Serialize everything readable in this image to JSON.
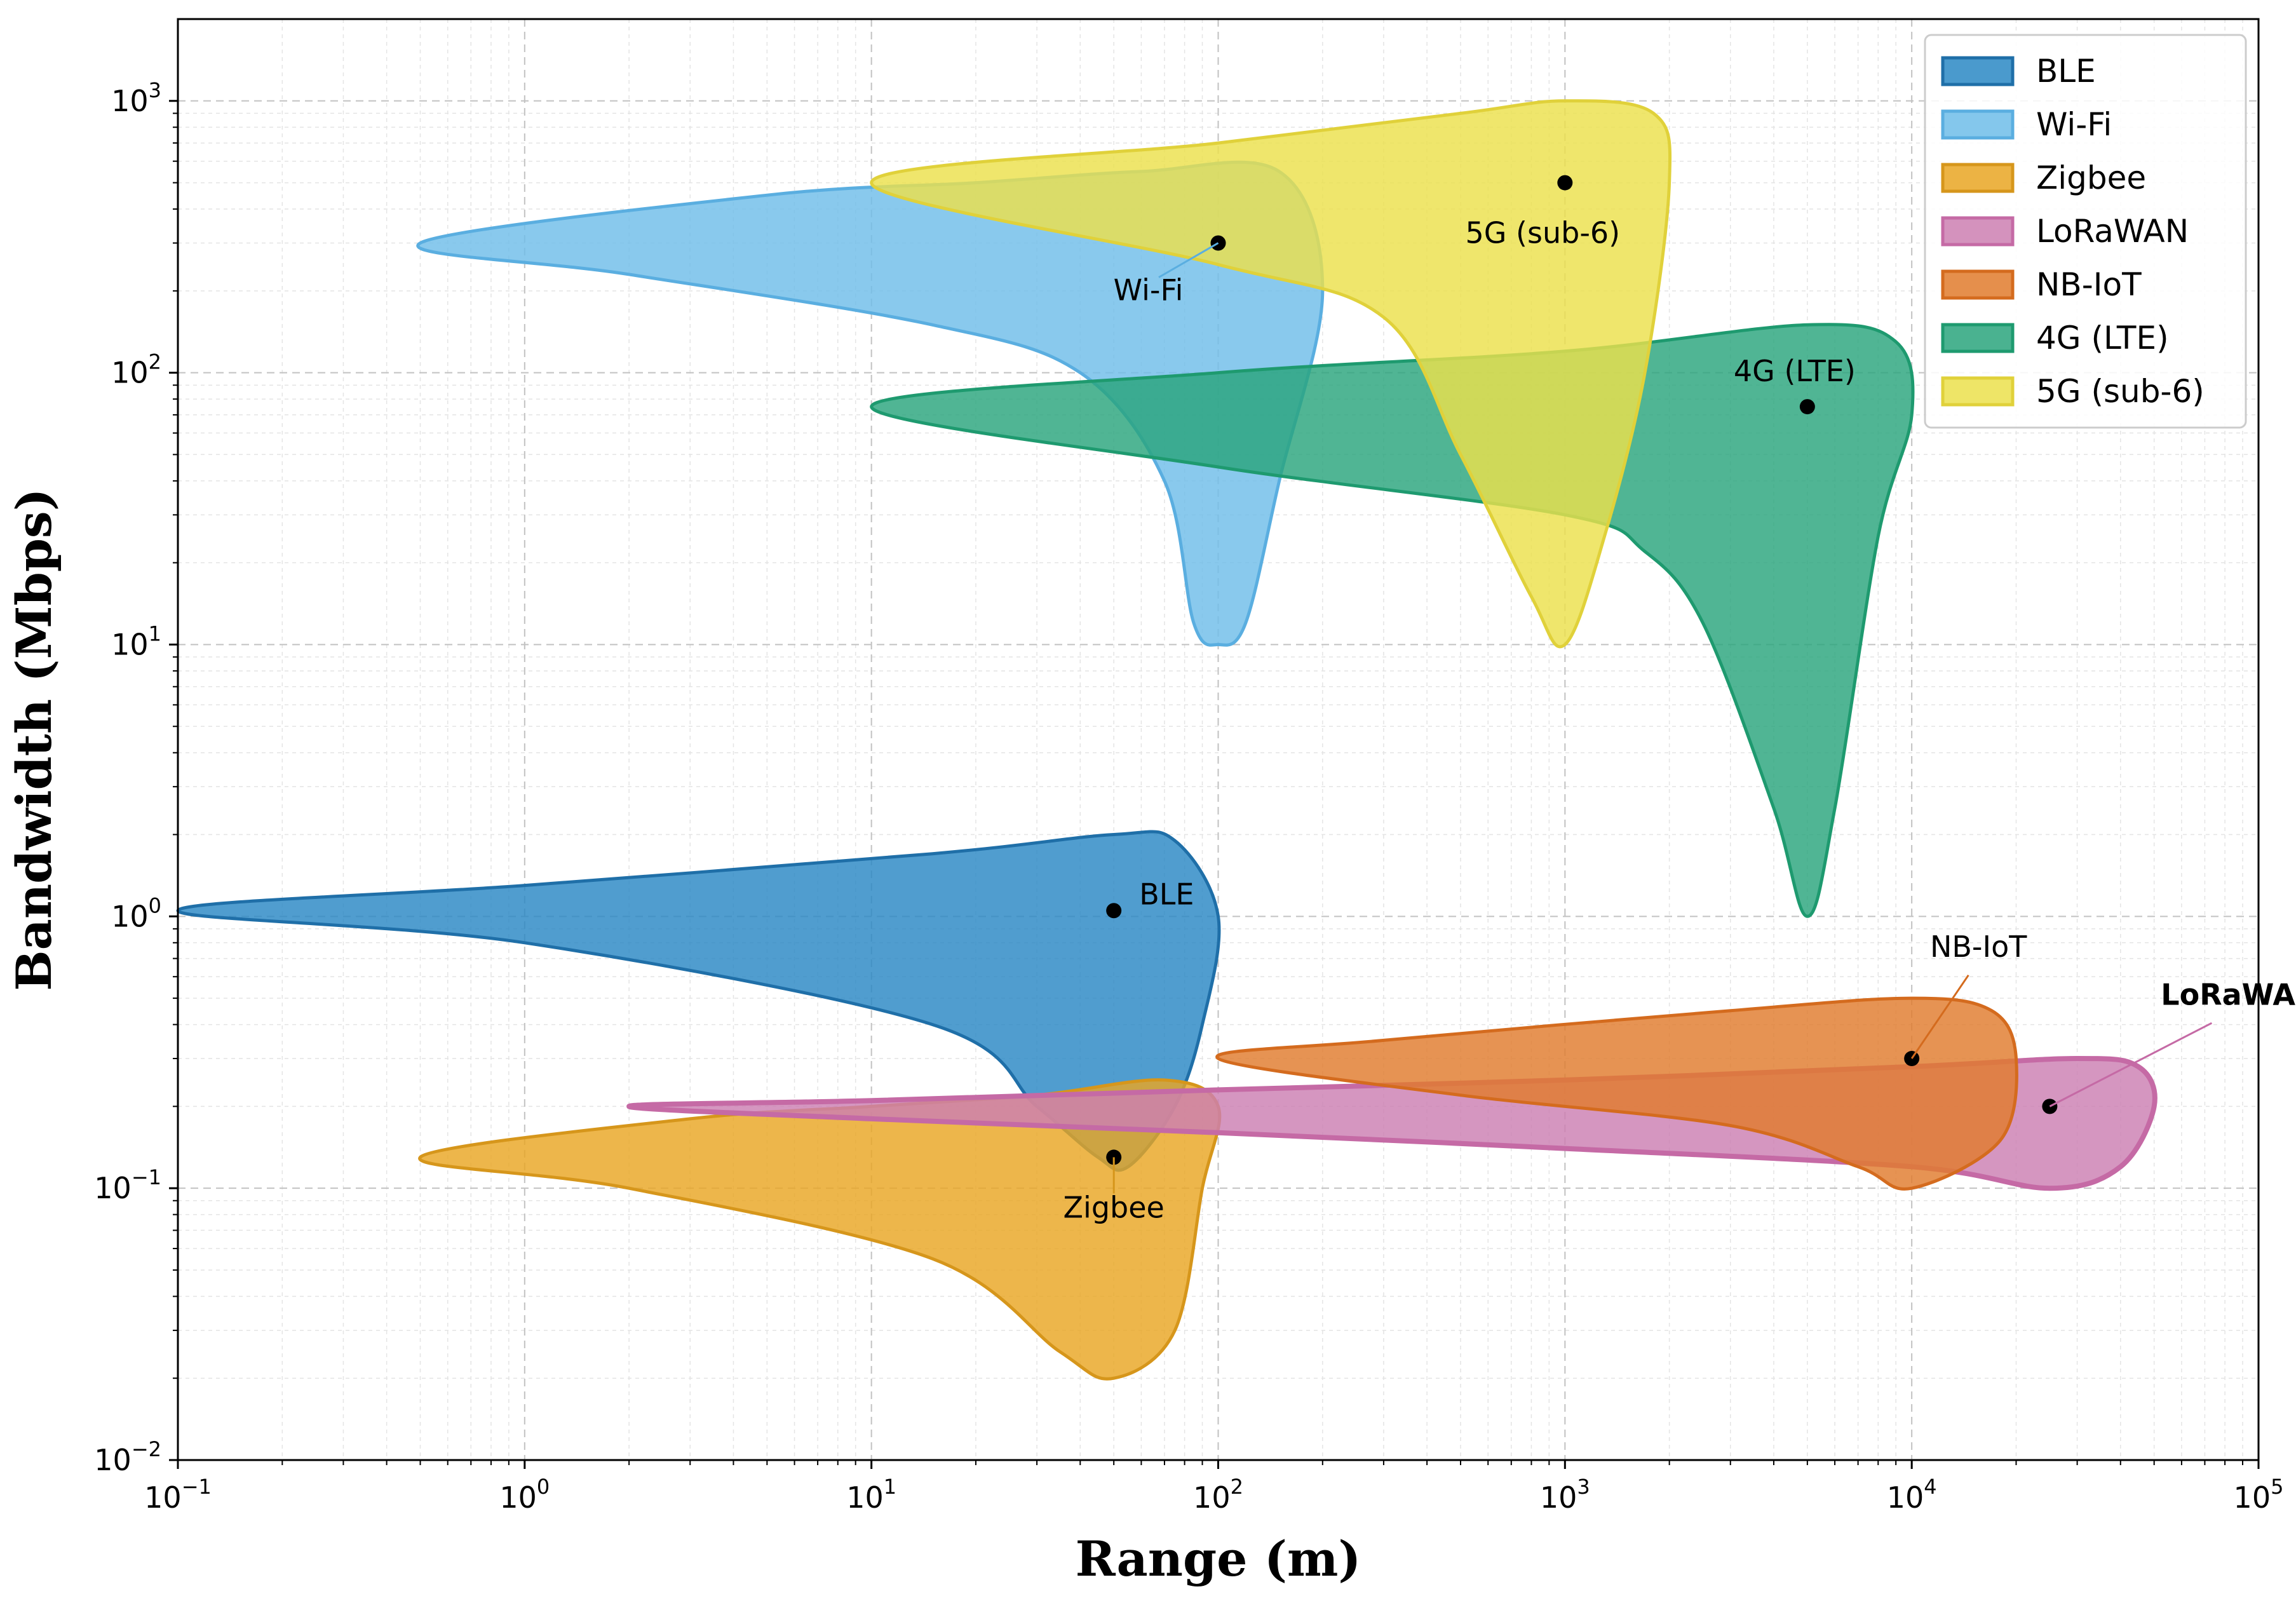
{
  "chart_data": {
    "type": "area",
    "title": "",
    "xlabel": "Range (m)",
    "ylabel": "Bandwidth (Mbps)",
    "x_scale": "log",
    "y_scale": "log",
    "xlim": [
      0.1,
      100000
    ],
    "ylim": [
      0.01,
      2000
    ],
    "grid": true,
    "legend_position": "top-right",
    "x_ticks": [
      {
        "value": 0.1,
        "base": "10",
        "exp": "−1"
      },
      {
        "value": 1,
        "base": "10",
        "exp": "0"
      },
      {
        "value": 10,
        "base": "10",
        "exp": "1"
      },
      {
        "value": 100,
        "base": "10",
        "exp": "2"
      },
      {
        "value": 1000,
        "base": "10",
        "exp": "3"
      },
      {
        "value": 10000,
        "base": "10",
        "exp": "4"
      },
      {
        "value": 100000,
        "base": "10",
        "exp": "5"
      }
    ],
    "y_ticks": [
      {
        "value": 0.01,
        "base": "10",
        "exp": "−2"
      },
      {
        "value": 0.1,
        "base": "10",
        "exp": "−1"
      },
      {
        "value": 1,
        "base": "10",
        "exp": "0"
      },
      {
        "value": 10,
        "base": "10",
        "exp": "1"
      },
      {
        "value": 100,
        "base": "10",
        "exp": "2"
      },
      {
        "value": 1000,
        "base": "10",
        "exp": "3"
      }
    ],
    "series": [
      {
        "name": "BLE",
        "fill": "#2a88c4",
        "stroke": "#1f6fa8",
        "point": [
          50,
          1.05
        ],
        "label": "BLE",
        "label_bold": false,
        "region": [
          [
            0.1,
            1.05
          ],
          [
            1,
            1.3
          ],
          [
            15,
            1.7
          ],
          [
            50,
            2.0
          ],
          [
            75,
            1.9
          ],
          [
            100,
            1.0
          ],
          [
            90,
            0.4
          ],
          [
            75,
            0.2
          ],
          [
            55,
            0.12
          ],
          [
            45,
            0.13
          ],
          [
            30,
            0.2
          ],
          [
            15,
            0.4
          ],
          [
            1,
            0.8
          ],
          [
            0.1,
            1.05
          ]
        ]
      },
      {
        "name": "Wi-Fi",
        "fill": "#6fbde9",
        "stroke": "#5aaee0",
        "point": [
          100,
          300
        ],
        "label": "Wi-Fi",
        "label_bold": false,
        "region": [
          [
            0.5,
            300
          ],
          [
            5,
            450
          ],
          [
            20,
            500
          ],
          [
            60,
            550
          ],
          [
            150,
            550
          ],
          [
            200,
            200
          ],
          [
            150,
            40
          ],
          [
            120,
            12
          ],
          [
            100,
            10
          ],
          [
            85,
            12
          ],
          [
            70,
            40
          ],
          [
            40,
            100
          ],
          [
            15,
            150
          ],
          [
            2,
            230
          ],
          [
            0.5,
            300
          ]
        ]
      },
      {
        "name": "Zigbee",
        "fill": "#e9a623",
        "stroke": "#d6961b",
        "point": [
          50,
          0.13
        ],
        "label": "Zigbee",
        "label_bold": false,
        "region": [
          [
            0.5,
            0.13
          ],
          [
            3,
            0.18
          ],
          [
            10,
            0.2
          ],
          [
            30,
            0.22
          ],
          [
            70,
            0.25
          ],
          [
            100,
            0.2
          ],
          [
            90,
            0.1
          ],
          [
            75,
            0.03
          ],
          [
            50,
            0.02
          ],
          [
            35,
            0.025
          ],
          [
            15,
            0.055
          ],
          [
            2,
            0.1
          ],
          [
            0.5,
            0.13
          ]
        ]
      },
      {
        "name": "LoRaWAN",
        "fill": "#cc7fb2",
        "stroke": "#c56aa5",
        "point": [
          25000,
          0.2
        ],
        "label": "LoRaWAN",
        "label_bold": true,
        "region": [
          [
            2,
            0.2
          ],
          [
            10,
            0.21
          ],
          [
            100,
            0.23
          ],
          [
            1000,
            0.25
          ],
          [
            10000,
            0.28
          ],
          [
            30000,
            0.3
          ],
          [
            45000,
            0.28
          ],
          [
            50000,
            0.2
          ],
          [
            40000,
            0.12
          ],
          [
            25000,
            0.1
          ],
          [
            10000,
            0.12
          ],
          [
            1000,
            0.14
          ],
          [
            100,
            0.16
          ],
          [
            10,
            0.18
          ],
          [
            2,
            0.2
          ]
        ]
      },
      {
        "name": "NB-IoT",
        "fill": "#e07b2d",
        "stroke": "#d46b1e",
        "point": [
          10000,
          0.3
        ],
        "label": "NB-IoT",
        "label_bold": false,
        "region": [
          [
            100,
            0.3
          ],
          [
            300,
            0.35
          ],
          [
            3000,
            0.45
          ],
          [
            10000,
            0.5
          ],
          [
            17000,
            0.45
          ],
          [
            20000,
            0.3
          ],
          [
            18000,
            0.15
          ],
          [
            10000,
            0.1
          ],
          [
            7000,
            0.12
          ],
          [
            3000,
            0.17
          ],
          [
            500,
            0.22
          ],
          [
            100,
            0.3
          ]
        ]
      },
      {
        "name": "4G (LTE)",
        "fill": "#2aa57c",
        "stroke": "#1e9a6f",
        "point": [
          5000,
          75
        ],
        "label": "4G (LTE)",
        "label_bold": false,
        "region": [
          [
            10,
            75
          ],
          [
            100,
            100
          ],
          [
            1000,
            120
          ],
          [
            5000,
            150
          ],
          [
            9000,
            130
          ],
          [
            10000,
            70
          ],
          [
            8000,
            25
          ],
          [
            6000,
            2.5
          ],
          [
            5000,
            1.0
          ],
          [
            4000,
            2.5
          ],
          [
            2500,
            12
          ],
          [
            1700,
            22
          ],
          [
            1000,
            30
          ],
          [
            100,
            45
          ],
          [
            10,
            75
          ]
        ]
      },
      {
        "name": "5G (sub-6)",
        "fill": "#ebe04c",
        "stroke": "#e0d13a",
        "point": [
          1000,
          500
        ],
        "label": "5G (sub-6)",
        "label_bold": false,
        "region": [
          [
            10,
            500
          ],
          [
            100,
            700
          ],
          [
            500,
            900
          ],
          [
            1000,
            1000
          ],
          [
            1800,
            900
          ],
          [
            2000,
            500
          ],
          [
            1700,
            100
          ],
          [
            1300,
            25
          ],
          [
            1000,
            10
          ],
          [
            800,
            15
          ],
          [
            500,
            50
          ],
          [
            300,
            160
          ],
          [
            100,
            250
          ],
          [
            10,
            500
          ]
        ]
      }
    ]
  }
}
